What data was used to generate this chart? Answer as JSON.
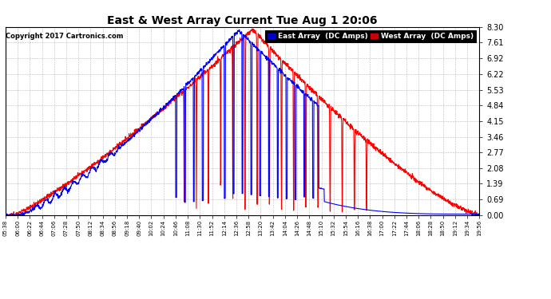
{
  "title": "East & West Array Current Tue Aug 1 20:06",
  "copyright": "Copyright 2017 Cartronics.com",
  "legend_east": "East Array  (DC Amps)",
  "legend_west": "West Array  (DC Amps)",
  "east_color": "#0000FF",
  "west_color": "#FF0000",
  "legend_east_bg": "#0000CC",
  "legend_west_bg": "#CC0000",
  "yticks": [
    0.0,
    0.69,
    1.39,
    2.08,
    2.77,
    3.46,
    4.15,
    4.84,
    5.53,
    6.22,
    6.92,
    7.61,
    8.3
  ],
  "ymax": 8.3,
  "ymin": 0.0,
  "xtick_labels": [
    "05:38",
    "06:00",
    "06:22",
    "06:44",
    "07:06",
    "07:28",
    "07:50",
    "08:12",
    "08:34",
    "08:56",
    "09:18",
    "09:40",
    "10:02",
    "10:24",
    "10:46",
    "11:08",
    "11:30",
    "11:52",
    "12:14",
    "12:36",
    "12:58",
    "13:20",
    "13:42",
    "14:04",
    "14:26",
    "14:48",
    "15:10",
    "15:32",
    "15:54",
    "16:16",
    "16:38",
    "17:00",
    "17:22",
    "17:44",
    "18:06",
    "18:28",
    "18:50",
    "19:12",
    "19:34",
    "19:56"
  ],
  "background_color": "#FFFFFF",
  "grid_color": "#AAAAAA",
  "line_width": 0.8
}
